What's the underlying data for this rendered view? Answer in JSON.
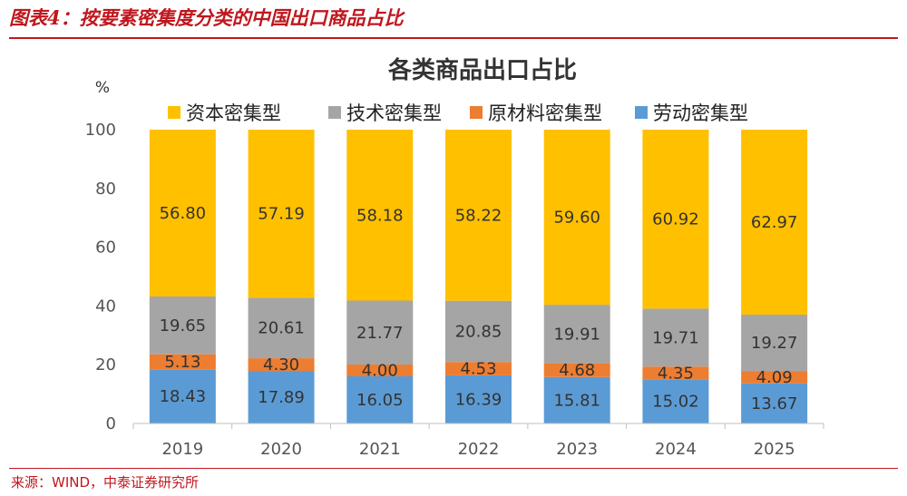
{
  "figure_title": "图表4：按要素密集度分类的中国出口商品占比",
  "source": "来源：WIND，中泰证券研究所",
  "chart_data": {
    "type": "bar",
    "stacked": true,
    "title": "各类商品出口占比",
    "ylabel": "%",
    "ylim": [
      0,
      100
    ],
    "yticks": [
      0,
      20,
      40,
      60,
      80,
      100
    ],
    "categories": [
      "2019",
      "2020",
      "2021",
      "2022",
      "2023",
      "2024",
      "2025"
    ],
    "legend_position": "top",
    "series": [
      {
        "name": "劳动密集型",
        "color": "#5b9bd5",
        "values": [
          18.43,
          17.89,
          16.05,
          16.39,
          15.81,
          15.02,
          13.67
        ],
        "labels": [
          "18.43",
          "17.89",
          "16.05",
          "16.39",
          "15.81",
          "15.02",
          "13.67"
        ]
      },
      {
        "name": "原材料密集型",
        "color": "#ed7d31",
        "values": [
          5.13,
          4.3,
          4.0,
          4.53,
          4.68,
          4.35,
          4.09
        ],
        "labels": [
          "5.13",
          "4.30",
          "4.00",
          "4.53",
          "4.68",
          "4.35",
          "4.09"
        ]
      },
      {
        "name": "技术密集型",
        "color": "#a5a5a5",
        "values": [
          19.65,
          20.61,
          21.77,
          20.85,
          19.91,
          19.71,
          19.27
        ],
        "labels": [
          "19.65",
          "20.61",
          "21.77",
          "20.85",
          "19.91",
          "19.71",
          "19.27"
        ]
      },
      {
        "name": "资本密集型",
        "color": "#ffc000",
        "values": [
          56.8,
          57.19,
          58.18,
          58.22,
          59.6,
          60.92,
          62.97
        ],
        "labels": [
          "56.80",
          "57.19",
          "58.18",
          "58.22",
          "59.60",
          "60.92",
          "62.97"
        ]
      }
    ],
    "legend_order": [
      "资本密集型",
      "技术密集型",
      "原材料密集型",
      "劳动密集型"
    ]
  }
}
